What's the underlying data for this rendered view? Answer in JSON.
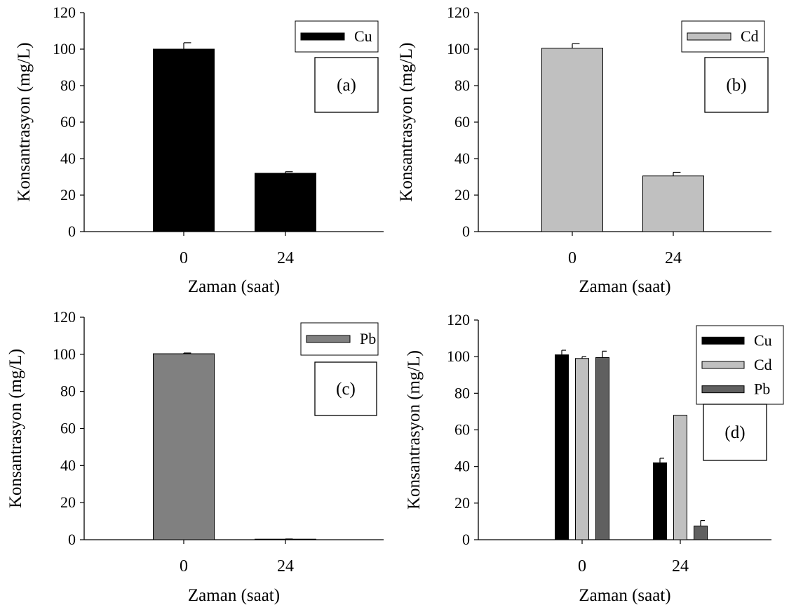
{
  "chart_data": [
    {
      "type": "bar",
      "panel_label": "(a)",
      "categories": [
        "0",
        "24"
      ],
      "series": [
        {
          "name": "Cu",
          "values": [
            100,
            32
          ],
          "errors": [
            3.5,
            0.8
          ],
          "color": "#000000"
        }
      ],
      "xlabel": "Zaman (saat)",
      "ylabel": "Konsantrasyon (mg/L)",
      "ylim": [
        0,
        120
      ],
      "yticks": [
        "0",
        "20",
        "40",
        "60",
        "80",
        "100",
        "120"
      ],
      "legend_position": "top-right"
    },
    {
      "type": "bar",
      "panel_label": "(b)",
      "categories": [
        "0",
        "24"
      ],
      "series": [
        {
          "name": "Cd",
          "values": [
            100.5,
            30.5
          ],
          "errors": [
            2.5,
            2.0
          ],
          "color": "#c0c0c0"
        }
      ],
      "xlabel": "Zaman (saat)",
      "ylabel": "Konsantrasyon (mg/L)",
      "ylim": [
        0,
        120
      ],
      "yticks": [
        "0",
        "20",
        "40",
        "60",
        "80",
        "100",
        "120"
      ],
      "legend_position": "top-right"
    },
    {
      "type": "bar",
      "panel_label": "(c)",
      "categories": [
        "0",
        "24"
      ],
      "series": [
        {
          "name": "Pb",
          "values": [
            100.3,
            0.3
          ],
          "errors": [
            0.4,
            0.1
          ],
          "color": "#808080"
        }
      ],
      "xlabel": "Zaman (saat)",
      "ylabel": "Konsantrasyon (mg/L)",
      "ylim": [
        0,
        120
      ],
      "yticks": [
        "0",
        "20",
        "40",
        "60",
        "80",
        "100",
        "120"
      ],
      "legend_position": "top-right"
    },
    {
      "type": "bar",
      "panel_label": "(d)",
      "categories": [
        "0",
        "24"
      ],
      "series": [
        {
          "name": "Cu",
          "values": [
            101,
            42
          ],
          "errors": [
            2.5,
            2.5
          ],
          "color": "#000000"
        },
        {
          "name": "Cd",
          "values": [
            99,
            68
          ],
          "errors": [
            1.0,
            0
          ],
          "color": "#c0c0c0"
        },
        {
          "name": "Pb",
          "values": [
            99.5,
            7.5
          ],
          "errors": [
            3.5,
            3.0
          ],
          "color": "#606060"
        }
      ],
      "xlabel": "Zaman (saat)",
      "ylabel": "Konsantrasyon (mg/L)",
      "ylim": [
        0,
        120
      ],
      "yticks": [
        "0",
        "20",
        "40",
        "60",
        "80",
        "100",
        "120"
      ],
      "legend_position": "top-right"
    }
  ]
}
